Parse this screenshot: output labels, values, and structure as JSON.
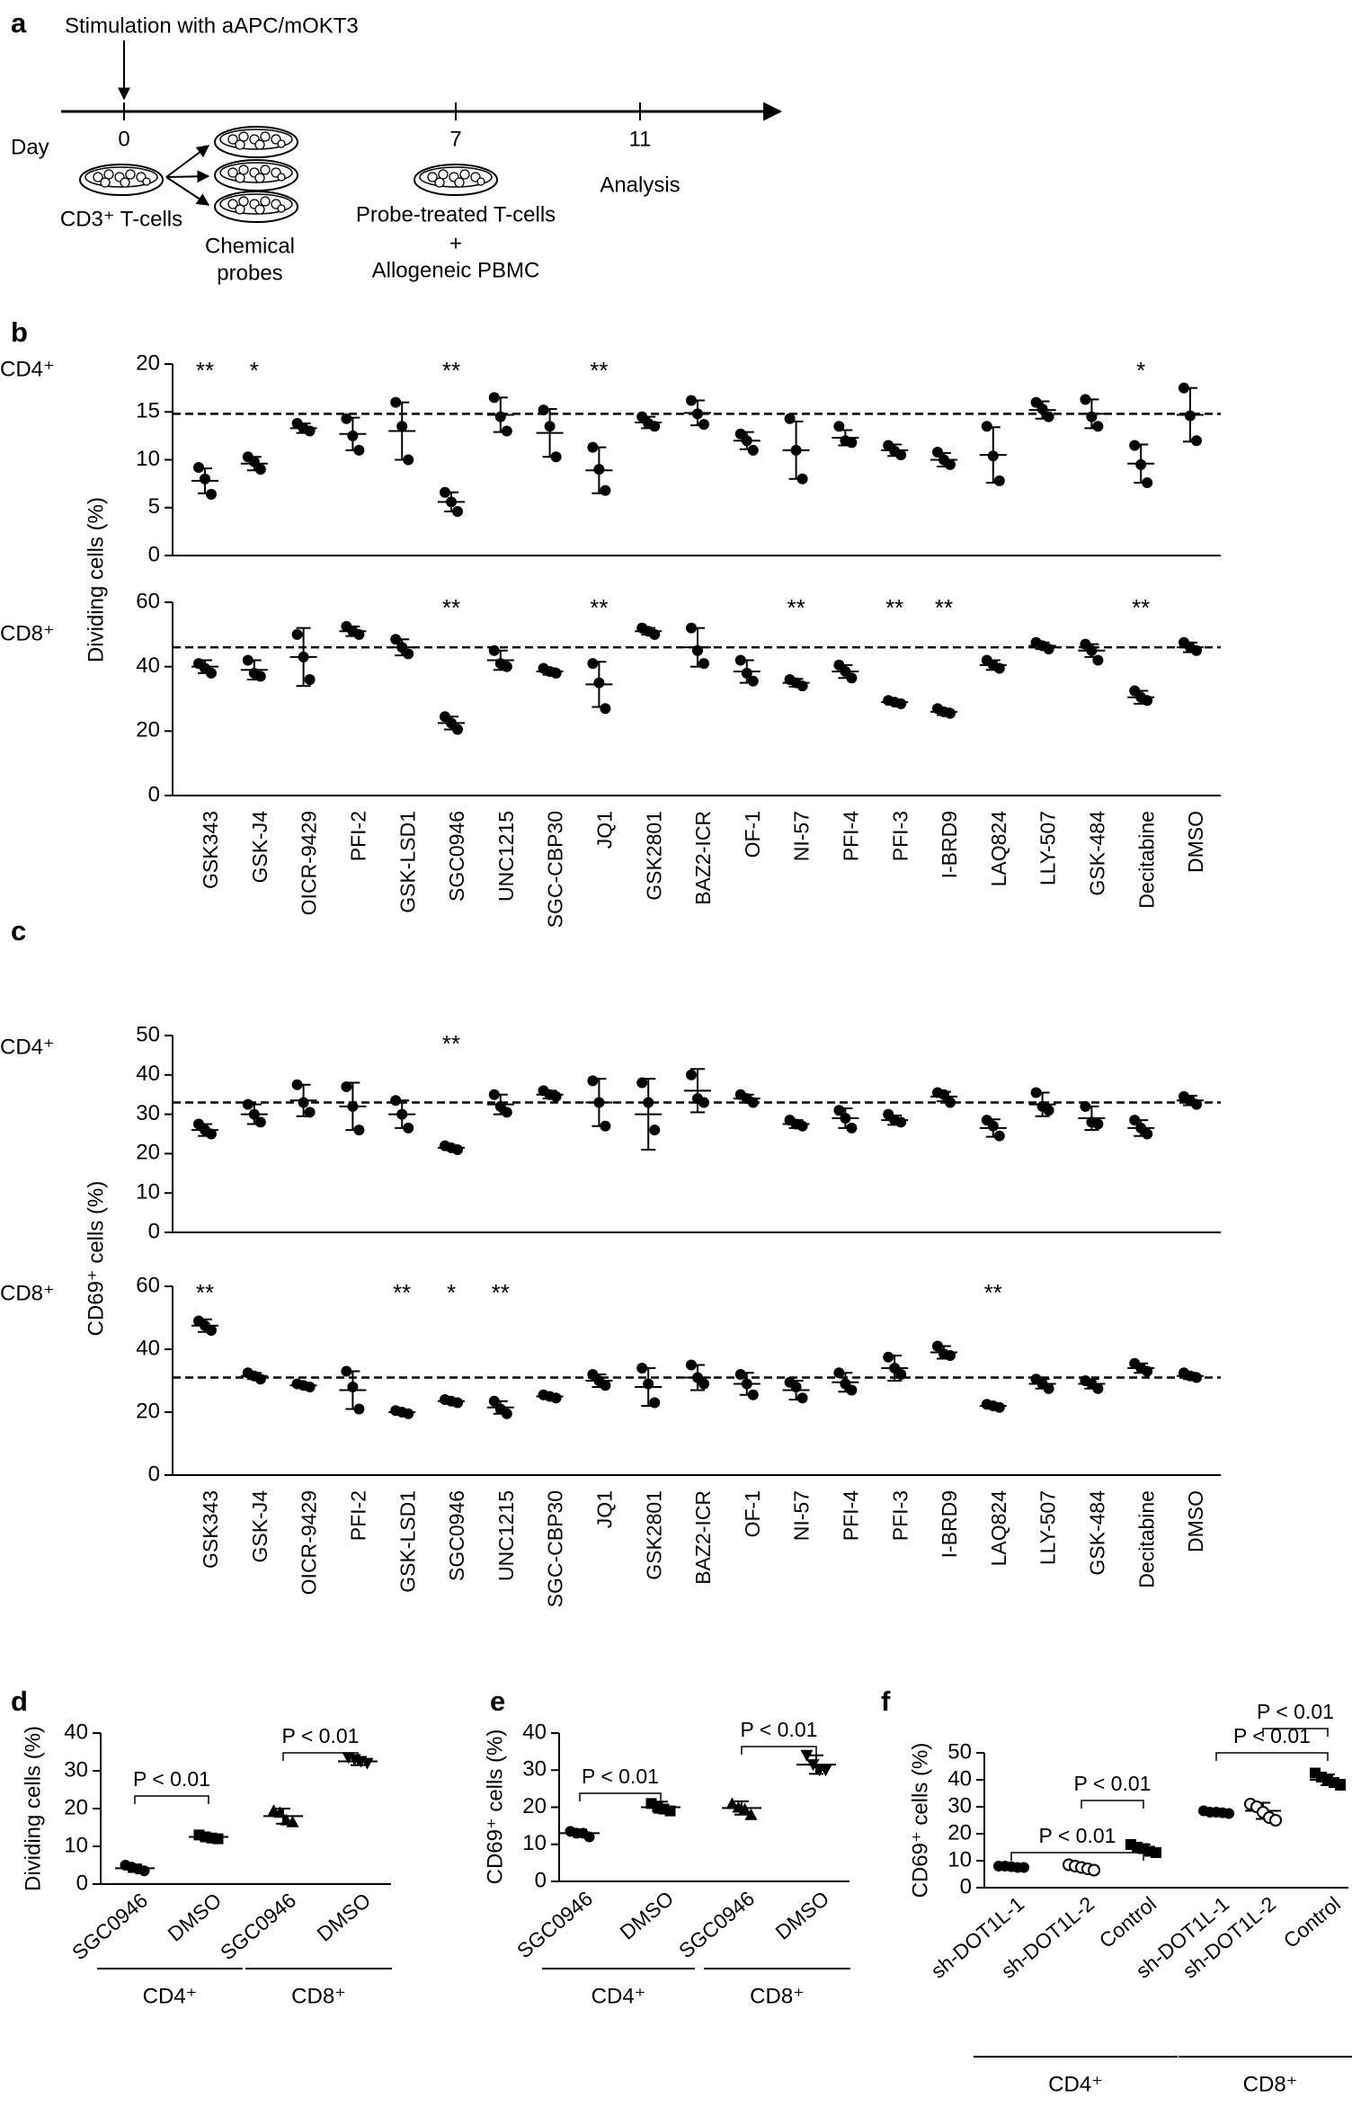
{
  "panel_labels": [
    "a",
    "b",
    "c",
    "d",
    "e",
    "f"
  ],
  "timeline": {
    "stimulation": "Stimulation with aAPC/mOKT3",
    "day_label": "Day",
    "days": [
      "0",
      "7",
      "11"
    ],
    "start_cells": "CD3⁺ T-cells",
    "probes": [
      "Chemical",
      "probes"
    ],
    "day7": [
      "Probe-treated T-cells",
      "+",
      "Allogeneic PBMC"
    ],
    "day11": "Analysis"
  },
  "chart_data": [
    {
      "type": "dot",
      "group_label": "CD4⁺",
      "ylabel": "Dividing cells (%)",
      "ylim": [
        0,
        20
      ],
      "yticks": [
        0,
        5,
        10,
        15,
        20
      ],
      "reference_line": 14.8,
      "values": [
        7.8,
        9.6,
        13.3,
        12.7,
        13,
        5.6,
        14.7,
        12.8,
        8.9,
        13.9,
        14.9,
        12,
        11,
        12.3,
        11,
        10,
        10.5,
        15.2,
        14.8,
        9.6,
        14.7
      ],
      "errors": [
        1.3,
        0.7,
        0.5,
        1.7,
        3,
        1,
        1.8,
        2.5,
        2.4,
        0.6,
        1.3,
        0.9,
        3,
        0.8,
        0.6,
        0.7,
        2.9,
        0.9,
        1.5,
        2,
        2.8
      ],
      "points": [
        [
          9.2,
          8,
          6.4
        ],
        [
          10.3,
          9.8,
          9
        ],
        [
          13.8,
          13.3,
          13
        ],
        [
          14.3,
          12.5,
          11
        ],
        [
          16,
          13.5,
          10
        ],
        [
          6.6,
          5.6,
          4.6
        ],
        [
          16.5,
          14.5,
          13
        ],
        [
          15.2,
          13.5,
          10.3
        ],
        [
          11.3,
          9,
          6.8
        ],
        [
          14.5,
          13.8,
          13.5
        ],
        [
          16.2,
          14.8,
          13.7
        ],
        [
          12.7,
          12,
          11
        ],
        [
          14.3,
          11,
          8
        ],
        [
          13.5,
          12,
          11.8
        ],
        [
          11.5,
          10.9,
          10.5
        ],
        [
          10.8,
          10,
          9.5
        ],
        [
          13.5,
          10.4,
          7.8
        ],
        [
          16,
          15.3,
          14.5
        ],
        [
          16.3,
          14.5,
          13.5
        ],
        [
          11.5,
          9.5,
          7.6
        ],
        [
          17.5,
          14.6,
          12
        ]
      ],
      "significance": [
        "**",
        "*",
        null,
        null,
        null,
        "**",
        null,
        null,
        "**",
        null,
        null,
        null,
        null,
        null,
        null,
        null,
        null,
        null,
        null,
        "*",
        null
      ]
    },
    {
      "type": "dot",
      "group_label": "CD8⁺",
      "ylim": [
        0,
        60
      ],
      "yticks": [
        0,
        20,
        40,
        60
      ],
      "reference_line": 46,
      "categories": [
        "GSK343",
        "GSK-J4",
        "OICR-9429",
        "PFI-2",
        "GSK-LSD1",
        "SGC0946",
        "UNC1215",
        "SGC-CBP30",
        "JQ1",
        "GSK2801",
        "BAZ2-ICR",
        "OF-1",
        "NI-57",
        "PFI-4",
        "PFI-3",
        "I-BRD9",
        "LAQ824",
        "LLY-507",
        "GSK-484",
        "Decitabine",
        "DMSO"
      ],
      "values": [
        40,
        39,
        43,
        51,
        46,
        22.5,
        42,
        38.5,
        34.5,
        51,
        46,
        38.5,
        35,
        38.5,
        29,
        26,
        40.5,
        46.5,
        45,
        30.5,
        46
      ],
      "errors": [
        2,
        3,
        9,
        1.5,
        2.5,
        2,
        3,
        1,
        7,
        1,
        6,
        3.5,
        1.2,
        2,
        0.5,
        1,
        1.5,
        1,
        2,
        2,
        1.5
      ],
      "points": [
        [
          41,
          39.5,
          38
        ],
        [
          42,
          38,
          37
        ],
        [
          50,
          43,
          36
        ],
        [
          52.5,
          51,
          50
        ],
        [
          48.5,
          46,
          44
        ],
        [
          24.5,
          22.5,
          20.5
        ],
        [
          45,
          41,
          40
        ],
        [
          39.5,
          38.5,
          38
        ],
        [
          41,
          35,
          27
        ],
        [
          52,
          51,
          50
        ],
        [
          52,
          45,
          41
        ],
        [
          42,
          38,
          35.5
        ],
        [
          36,
          35,
          34
        ],
        [
          40.5,
          38.5,
          36.5
        ],
        [
          29.5,
          29,
          28.5
        ],
        [
          27,
          26,
          25.5
        ],
        [
          42,
          40.5,
          39.5
        ],
        [
          47.5,
          46.5,
          45.5
        ],
        [
          47,
          45,
          42
        ],
        [
          32.5,
          30.5,
          29.5
        ],
        [
          47.5,
          46,
          45
        ]
      ],
      "significance": [
        null,
        null,
        null,
        null,
        null,
        "**",
        null,
        null,
        "**",
        null,
        null,
        null,
        "**",
        null,
        "**",
        "**",
        null,
        null,
        null,
        "**",
        null
      ]
    },
    {
      "type": "dot",
      "group_label": "CD4⁺",
      "ylabel": "CD69⁺ cells (%)",
      "ylim": [
        0,
        50
      ],
      "yticks": [
        0,
        10,
        20,
        30,
        40,
        50
      ],
      "reference_line": 33,
      "values": [
        26,
        30,
        33.5,
        32,
        30,
        21.5,
        32.5,
        35,
        33,
        30,
        36,
        34,
        27.5,
        29,
        28.5,
        34.5,
        26.5,
        32.5,
        29,
        26.5,
        33.5
      ],
      "errors": [
        1.5,
        2.5,
        4,
        6,
        3.5,
        0.5,
        2.5,
        1,
        6,
        9,
        5.5,
        1,
        1,
        2.5,
        1.2,
        1.2,
        2.2,
        3,
        3,
        2,
        1.2
      ],
      "points": [
        [
          27.5,
          26,
          25
        ],
        [
          32.5,
          30,
          28
        ],
        [
          37.5,
          33,
          30.5
        ],
        [
          37,
          32,
          26
        ],
        [
          33.5,
          30,
          26.5
        ],
        [
          22,
          21.5,
          21
        ],
        [
          35,
          32,
          30.5
        ],
        [
          36,
          35,
          34.5
        ],
        [
          38.5,
          33,
          27
        ],
        [
          38,
          33,
          26
        ],
        [
          40,
          34,
          33
        ],
        [
          35,
          34,
          33
        ],
        [
          28.5,
          27.5,
          27
        ],
        [
          31,
          29,
          26.5
        ],
        [
          30,
          28.5,
          28
        ],
        [
          35.5,
          35,
          33
        ],
        [
          28.5,
          27,
          24.5
        ],
        [
          35.5,
          32,
          31
        ],
        [
          32,
          28,
          27.5
        ],
        [
          28.5,
          26.5,
          25
        ],
        [
          34.5,
          33.5,
          32.5
        ]
      ],
      "significance": [
        null,
        null,
        null,
        null,
        null,
        "**",
        null,
        null,
        null,
        null,
        null,
        null,
        null,
        null,
        null,
        null,
        null,
        null,
        null,
        null,
        null
      ]
    },
    {
      "type": "dot",
      "group_label": "CD8⁺",
      "ylim": [
        0,
        60
      ],
      "yticks": [
        0,
        20,
        40,
        60
      ],
      "reference_line": 31,
      "categories": [
        "GSK343",
        "GSK-J4",
        "OICR-9429",
        "PFI-2",
        "GSK-LSD1",
        "SGC0946",
        "UNC1215",
        "SGC-CBP30",
        "JQ1",
        "GSK2801",
        "BAZ2-ICR",
        "OF-1",
        "NI-57",
        "PFI-4",
        "PFI-3",
        "I-BRD9",
        "LAQ824",
        "LLY-507",
        "GSK-484",
        "Decitabine",
        "DMSO"
      ],
      "values": [
        47.5,
        31.5,
        28.5,
        27,
        20,
        23.5,
        21.5,
        25,
        30,
        28,
        31,
        29,
        27,
        29.5,
        34,
        39,
        22,
        29,
        29,
        34,
        31.5
      ],
      "errors": [
        2,
        1,
        0.7,
        6,
        0.5,
        0.5,
        2,
        0.7,
        2,
        6,
        4,
        3.5,
        3,
        3,
        4,
        2,
        0.5,
        1.5,
        1.5,
        1.5,
        1
      ],
      "points": [
        [
          49,
          47.5,
          46
        ],
        [
          32.5,
          31.5,
          30.5
        ],
        [
          29,
          28.5,
          28
        ],
        [
          33,
          28,
          21
        ],
        [
          20.5,
          20,
          19.5
        ],
        [
          24,
          23.5,
          23
        ],
        [
          23.5,
          21,
          19.5
        ],
        [
          25.5,
          25,
          24.5
        ],
        [
          32,
          30,
          28.5
        ],
        [
          34,
          29,
          23
        ],
        [
          35,
          31,
          29
        ],
        [
          32,
          29,
          25.5
        ],
        [
          29.5,
          28,
          24.5
        ],
        [
          32.5,
          29,
          27
        ],
        [
          37.5,
          34,
          32
        ],
        [
          41,
          38.5,
          38
        ],
        [
          22.5,
          22,
          21.5
        ],
        [
          30.5,
          29,
          27.5
        ],
        [
          30,
          29,
          27.5
        ],
        [
          35.5,
          34,
          33
        ],
        [
          32.5,
          31.5,
          31
        ]
      ],
      "significance": [
        "**",
        null,
        null,
        null,
        "**",
        "*",
        "**",
        null,
        null,
        null,
        null,
        null,
        null,
        null,
        null,
        null,
        "**",
        null,
        null,
        null,
        null
      ]
    },
    {
      "type": "dot",
      "ylabel": "Dividing cells (%)",
      "ylim": [
        0,
        40
      ],
      "yticks": [
        0,
        10,
        20,
        30,
        40
      ],
      "categories": [
        "SGC0946",
        "DMSO",
        "SGC0946",
        "DMSO"
      ],
      "groups": [
        "CD4⁺",
        "CD8⁺"
      ],
      "markers": [
        "circle",
        "square",
        "triangle",
        "triangle-down"
      ],
      "values": [
        4.2,
        12.5,
        18,
        32.5
      ],
      "errors": [
        1,
        0.7,
        2,
        1
      ],
      "points": [
        [
          5,
          4.5,
          4,
          3.5
        ],
        [
          13,
          12.5,
          12.2,
          12
        ],
        [
          19.5,
          19,
          17,
          16.5
        ],
        [
          33.5,
          33,
          32.5,
          32
        ]
      ],
      "comparisons": [
        {
          "pair": [
            0,
            1
          ],
          "label": "P < 0.01"
        },
        {
          "pair": [
            2,
            3
          ],
          "label": "P < 0.01"
        }
      ]
    },
    {
      "type": "dot",
      "ylabel": "CD69⁺ cells (%)",
      "ylim": [
        0,
        40
      ],
      "yticks": [
        0,
        10,
        20,
        30,
        40
      ],
      "categories": [
        "SGC0946",
        "DMSO",
        "SGC0946",
        "DMSO"
      ],
      "groups": [
        "CD4⁺",
        "CD8⁺"
      ],
      "markers": [
        "circle",
        "square",
        "triangle",
        "triangle-down"
      ],
      "values": [
        13,
        20,
        19.8,
        31.5
      ],
      "errors": [
        1,
        1.5,
        1.8,
        2.5
      ],
      "points": [
        [
          13.5,
          13,
          13,
          12
        ],
        [
          21,
          20,
          19.5,
          19
        ],
        [
          21,
          20,
          19.5,
          18
        ],
        [
          34,
          31.5,
          30,
          30
        ]
      ],
      "comparisons": [
        {
          "pair": [
            0,
            1
          ],
          "label": "P < 0.01"
        },
        {
          "pair": [
            2,
            3
          ],
          "label": "P < 0.01"
        }
      ]
    },
    {
      "type": "dot",
      "ylabel": "CD69⁺ cells (%)",
      "ylim": [
        0,
        50
      ],
      "yticks": [
        0,
        10,
        20,
        30,
        40,
        50
      ],
      "categories": [
        "sh-DOT1L-1",
        "sh-DOT1L-2",
        "Control",
        "sh-DOT1L-1",
        "sh-DOT1L-2",
        "Control"
      ],
      "groups": [
        "CD4⁺",
        "CD8⁺"
      ],
      "markers": [
        "circle",
        "circle-open",
        "square",
        "circle",
        "circle-open",
        "square"
      ],
      "values": [
        7.8,
        7.5,
        14.5,
        28,
        28.5,
        40
      ],
      "errors": [
        0.5,
        1,
        1.5,
        0.5,
        3,
        2
      ],
      "points": [
        [
          8,
          8,
          7.8,
          7.5,
          7.5
        ],
        [
          8.5,
          8,
          7.5,
          7,
          6.5
        ],
        [
          16,
          15,
          14.5,
          13.5,
          13
        ],
        [
          28.5,
          28,
          28,
          27.8,
          27.5
        ],
        [
          31,
          30,
          28,
          26,
          25
        ],
        [
          42.5,
          41,
          40,
          39,
          38
        ]
      ],
      "comparisons": [
        {
          "pair": [
            0,
            2
          ],
          "label": "P < 0.01"
        },
        {
          "pair": [
            1,
            2
          ],
          "label": "P < 0.01"
        },
        {
          "pair": [
            3,
            5
          ],
          "label": "P < 0.01"
        },
        {
          "pair": [
            4,
            5
          ],
          "label": "P < 0.01"
        }
      ]
    }
  ]
}
